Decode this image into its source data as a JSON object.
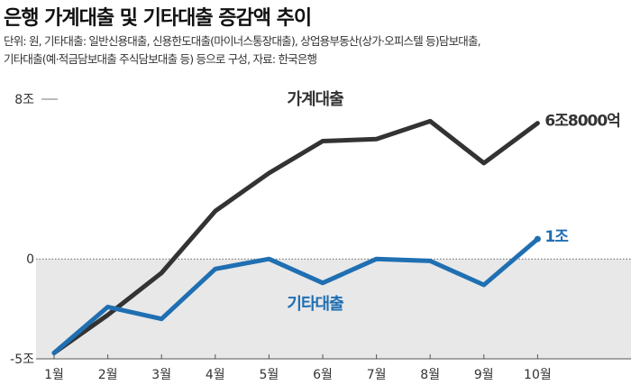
{
  "title": "은행 가계대출 및 기타대출 증감액 추이",
  "note_lines": [
    "단위: 원, 기타대출: 일반신용대출, 신용한도대출(마이너스통장대출), 상업용부동산(상가·오피스텔 등)담보대출,",
    "기타대출(예·적금담보대출 주식담보대출 등) 등으로 구성, 자료: 한국은행"
  ],
  "colors": {
    "household": "#333333",
    "other": "#1f6fb2",
    "negative_band": "#e8e8e8",
    "axis": "#555555"
  },
  "chart_data": {
    "type": "line",
    "categories": [
      "1월",
      "2월",
      "3월",
      "4월",
      "5월",
      "6월",
      "7월",
      "8월",
      "9월",
      "10월"
    ],
    "y_ticks": [
      {
        "value": 8,
        "label": "8조"
      },
      {
        "value": 0,
        "label": "0"
      },
      {
        "value": -5,
        "label": "-5조"
      }
    ],
    "ylim": [
      -5,
      8
    ],
    "series": [
      {
        "name": "가계대출",
        "color": "#333333",
        "end_label": "6조8000억",
        "values": [
          -4.7,
          -2.8,
          -0.7,
          2.4,
          4.3,
          5.9,
          6.0,
          6.9,
          4.8,
          6.8
        ]
      },
      {
        "name": "기타대출",
        "color": "#1f6fb2",
        "end_label": "1조",
        "values": [
          -4.7,
          -2.4,
          -3.0,
          -0.5,
          0.0,
          -1.2,
          0.0,
          -0.1,
          -1.3,
          1.0
        ]
      }
    ]
  }
}
